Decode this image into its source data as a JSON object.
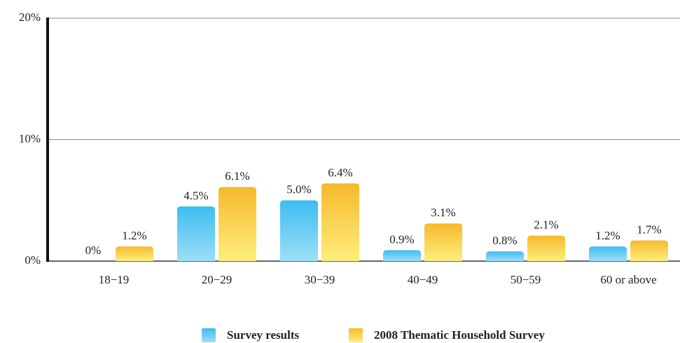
{
  "chart_data": {
    "type": "bar",
    "categories": [
      "18−19",
      "20−29",
      "30−39",
      "40−49",
      "50−59",
      "60 or above"
    ],
    "series": [
      {
        "name": "Survey results",
        "color": "#3dbdf0",
        "values": [
          0,
          4.5,
          5.0,
          0.9,
          0.8,
          1.2
        ],
        "value_labels": [
          "0%",
          "4.5%",
          "5.0%",
          "0.9%",
          "0.8%",
          "1.2%"
        ]
      },
      {
        "name": "2008 Thematic Household Survey",
        "color": "#f6b92b",
        "values": [
          1.2,
          6.1,
          6.4,
          3.1,
          2.1,
          1.7
        ],
        "value_labels": [
          "1.2%",
          "6.1%",
          "6.4%",
          "3.1%",
          "2.1%",
          "1.7%"
        ]
      }
    ],
    "ylim": [
      0,
      20
    ],
    "yticks": [
      {
        "value": 0,
        "label": "0%"
      },
      {
        "value": 10,
        "label": "10%"
      },
      {
        "value": 20,
        "label": "20%"
      }
    ],
    "grid": true,
    "legend": "bottom"
  }
}
